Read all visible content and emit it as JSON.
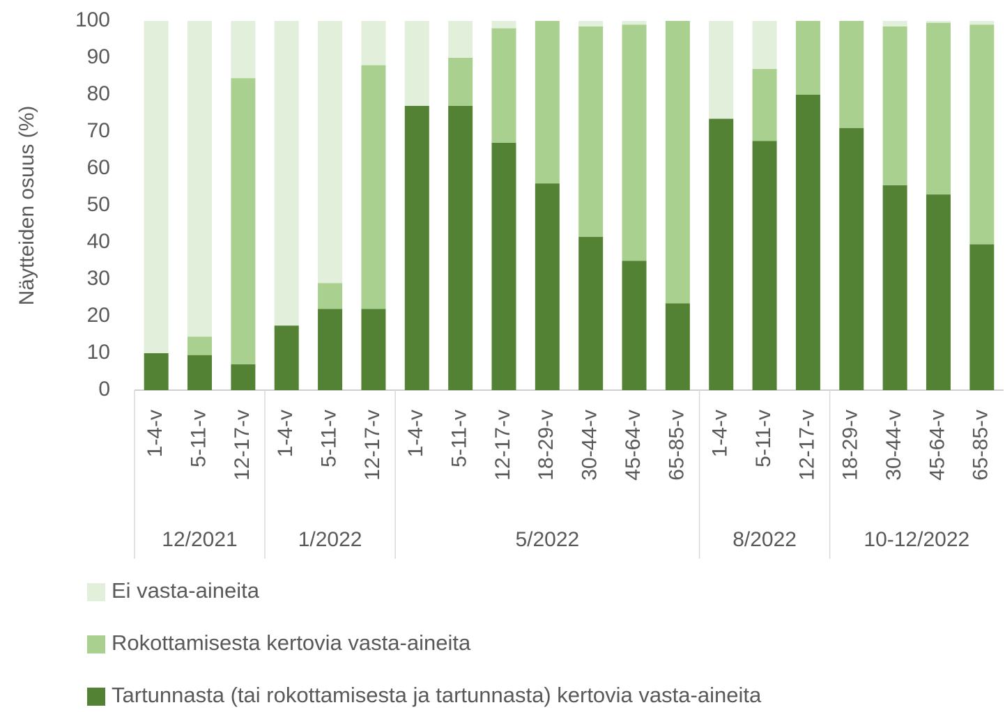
{
  "chart_data": {
    "type": "stacked_bar",
    "ylabel": "Näytteiden osuus (%)",
    "groups": [
      {
        "name": "12/2021",
        "categories": [
          "1-4-v",
          "5-11-v",
          "12-17-v"
        ]
      },
      {
        "name": "1/2022",
        "categories": [
          "1-4-v",
          "5-11-v",
          "12-17-v"
        ]
      },
      {
        "name": "5/2022",
        "categories": [
          "1-4-v",
          "5-11-v",
          "12-17-v",
          "18-29-v",
          "30-44-v",
          "45-64-v",
          "65-85-v"
        ]
      },
      {
        "name": "8/2022",
        "categories": [
          "1-4-v",
          "5-11-v",
          "12-17-v"
        ]
      },
      {
        "name": "10-12/2022",
        "categories": [
          "18-29-v",
          "30-44-v",
          "45-64-v",
          "65-85-v"
        ]
      }
    ],
    "series": [
      {
        "name": "Ei vasta-aineita",
        "color": "#e2efda",
        "values": [
          90,
          85.5,
          15.5,
          82.5,
          71,
          12,
          23,
          10,
          2,
          0,
          1.5,
          1,
          0,
          26.5,
          13,
          0,
          0,
          1.5,
          0.5,
          1
        ]
      },
      {
        "name": "Rokottamisesta kertovia vasta-aineita",
        "color": "#a9d08e",
        "values": [
          0,
          5,
          77.5,
          0,
          7,
          66,
          0,
          13,
          31,
          44,
          57,
          64,
          76.5,
          0,
          19.5,
          20,
          29,
          43,
          46.5,
          59.5
        ]
      },
      {
        "name": "Tartunnasta (tai rokottamisesta ja tartunnasta) kertovia vasta-aineita",
        "color": "#548235",
        "values": [
          10,
          9.5,
          7,
          17.5,
          22,
          22,
          77,
          77,
          67,
          56,
          41.5,
          35,
          23.5,
          73.5,
          67.5,
          80,
          71,
          55.5,
          53,
          39.5
        ]
      }
    ],
    "ylim": [
      0,
      100
    ],
    "yticks": [
      0,
      10,
      20,
      30,
      40,
      50,
      60,
      70,
      80,
      90,
      100
    ],
    "grid": false
  }
}
